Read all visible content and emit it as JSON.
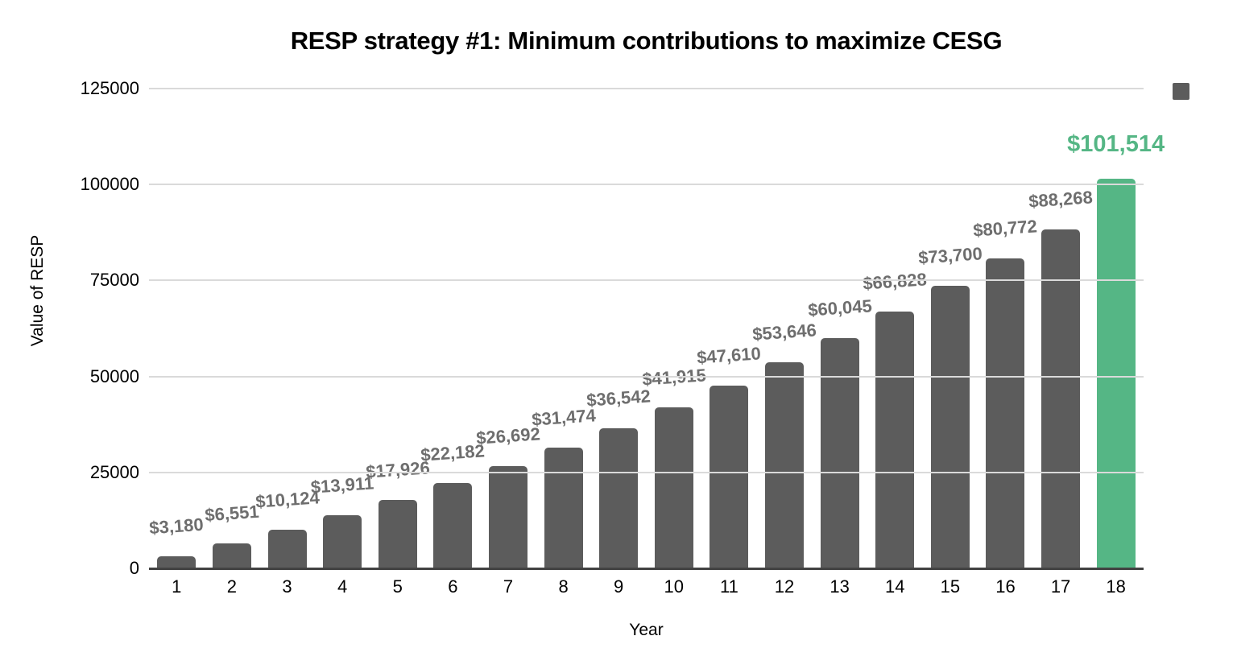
{
  "chart_data": {
    "type": "bar",
    "title": "RESP strategy #1: Minimum contributions to maximize CESG",
    "xlabel": "Year",
    "ylabel": "Value of RESP",
    "categories": [
      "1",
      "2",
      "3",
      "4",
      "5",
      "6",
      "7",
      "8",
      "9",
      "10",
      "11",
      "12",
      "13",
      "14",
      "15",
      "16",
      "17",
      "18"
    ],
    "values": [
      3180,
      6551,
      10124,
      13911,
      17926,
      22182,
      26692,
      31474,
      36542,
      41915,
      47610,
      53646,
      60045,
      66828,
      73700,
      80772,
      88268,
      101514
    ],
    "data_labels": [
      "$3,180",
      "$6,551",
      "$10,124",
      "$13,911",
      "$17,926",
      "$22,182",
      "$26,692",
      "$31,474",
      "$36,542",
      "$41,915",
      "$47,610",
      "$53,646",
      "$60,045",
      "$66,828",
      "$73,700",
      "$80,772",
      "$88,268",
      "$101,514"
    ],
    "highlight_index": 17,
    "ylim": [
      0,
      125000
    ],
    "ytick_values": [
      0,
      25000,
      50000,
      75000,
      100000,
      125000
    ],
    "ytick_labels": [
      "0",
      "25000",
      "50000",
      "75000",
      "100000",
      "125000"
    ],
    "grid": true,
    "legend_position": "top-right",
    "legend_swatch": "series-1-swatch",
    "colors": {
      "bar": "#5c5c5c",
      "highlight_bar": "#55b685",
      "data_label": "#6e6e6e",
      "highlight_label": "#55b685",
      "gridline": "#dadada",
      "axis_line": "#424242",
      "text": "#000000"
    }
  }
}
